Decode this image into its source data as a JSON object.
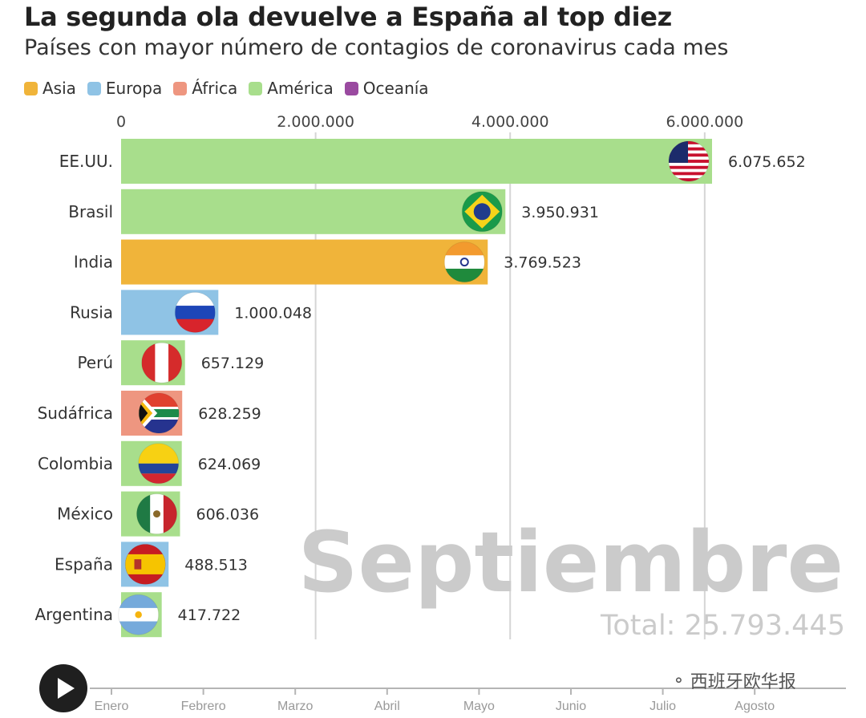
{
  "header": {
    "title": "La segunda ola devuelve a España al top diez",
    "subtitle": "Países con mayor número de contagios de coronavirus cada mes"
  },
  "legend": [
    {
      "label": "Asia",
      "color": "#f0b43a"
    },
    {
      "label": "Europa",
      "color": "#8fc3e5"
    },
    {
      "label": "África",
      "color": "#ee9680"
    },
    {
      "label": "América",
      "color": "#a8de8c"
    },
    {
      "label": "Oceanía",
      "color": "#9a4aa0"
    }
  ],
  "chart_data": {
    "type": "bar",
    "orientation": "horizontal",
    "xlim": [
      0,
      6075652
    ],
    "x_ticks": [
      0,
      2000000,
      4000000,
      6000000
    ],
    "x_tick_labels": [
      "0",
      "2.000.000",
      "4.000.000",
      "6.000.000"
    ],
    "gridlines": true,
    "categories": [
      "EE.UU.",
      "Brasil",
      "India",
      "Rusia",
      "Perú",
      "Sudáfrica",
      "Colombia",
      "México",
      "España",
      "Argentina"
    ],
    "values": [
      6075652,
      3950931,
      3769523,
      1000048,
      657129,
      628259,
      624069,
      606036,
      488513,
      417722
    ],
    "value_labels": [
      "6.075.652",
      "3.950.931",
      "3.769.523",
      "1.000.048",
      "657.129",
      "628.259",
      "624.069",
      "606.036",
      "488.513",
      "417.722"
    ],
    "regions": [
      "América",
      "América",
      "Asia",
      "Europa",
      "América",
      "África",
      "América",
      "América",
      "Europa",
      "América"
    ],
    "flags": [
      "us-flag-icon",
      "brazil-flag-icon",
      "india-flag-icon",
      "russia-flag-icon",
      "peru-flag-icon",
      "south-africa-flag-icon",
      "colombia-flag-icon",
      "mexico-flag-icon",
      "spain-flag-icon",
      "argentina-flag-icon"
    ],
    "current_month": "Septiembre",
    "total_label": "Total: 25.793.445"
  },
  "timeline": {
    "months": [
      "Enero",
      "Febrero",
      "Marzo",
      "Abril",
      "Mayo",
      "Junio",
      "Julio",
      "Agosto"
    ],
    "play_icon": "play-icon"
  },
  "watermark": {
    "text": "西班牙欧华报",
    "icon": "wechat-icon"
  }
}
